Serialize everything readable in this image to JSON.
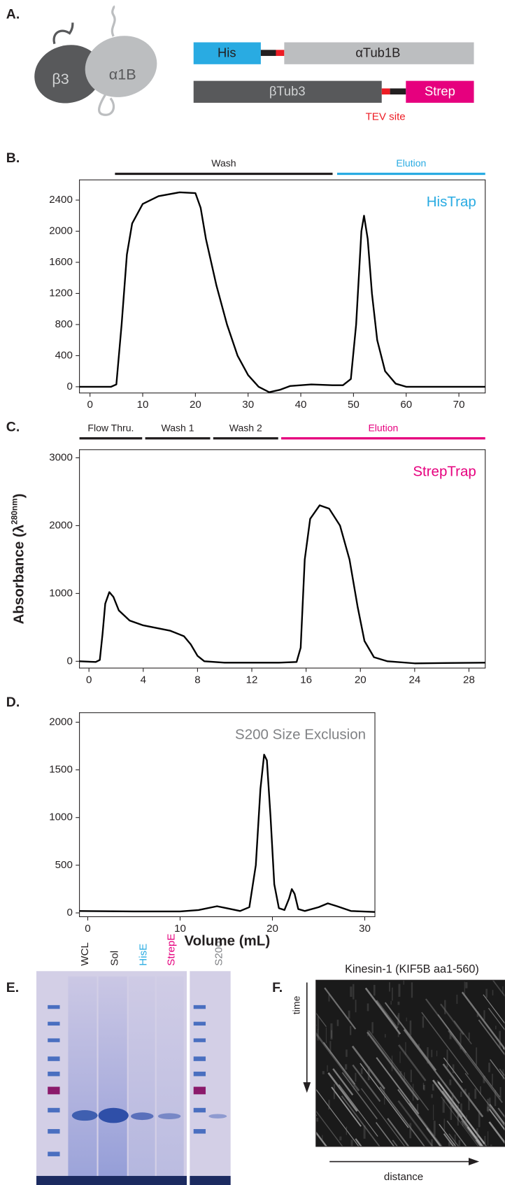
{
  "panel_labels": [
    "A.",
    "B.",
    "C.",
    "D.",
    "E.",
    "F."
  ],
  "diagram": {
    "subunits": [
      "β3",
      "α1B"
    ],
    "constructs": [
      [
        "His",
        "αTub1B"
      ],
      [
        "βTub3",
        "Strep"
      ]
    ],
    "tev": "TEV site"
  },
  "gel": {
    "lanes": [
      "WCL",
      "Sol",
      "HisE",
      "StrepE",
      "S200"
    ]
  },
  "kymograph": {
    "title": "Kinesin-1 (KIF5B aa1-560)",
    "y_label": "time",
    "x_label": "distance"
  },
  "chart_data": [
    {
      "type": "line",
      "title": "HisTrap",
      "title_color": "#29abe2",
      "phases": [
        {
          "label": "Wash",
          "color": "#231f20"
        },
        {
          "label": "Elution",
          "color": "#29abe2"
        }
      ],
      "color": "#000000",
      "x": [
        -2,
        4,
        5,
        6,
        7,
        8,
        10,
        13,
        17,
        20,
        21,
        22,
        24,
        26,
        28,
        30,
        32,
        34,
        36,
        38,
        42,
        46,
        48,
        49.5,
        50.5,
        51.5,
        52,
        52.7,
        53.5,
        54.5,
        56,
        58,
        60,
        75
      ],
      "values": [
        0,
        0,
        30,
        800,
        1700,
        2100,
        2350,
        2450,
        2500,
        2490,
        2300,
        1900,
        1300,
        800,
        400,
        150,
        0,
        -70,
        -40,
        10,
        30,
        20,
        20,
        100,
        800,
        2000,
        2200,
        1900,
        1200,
        600,
        200,
        40,
        0,
        0
      ],
      "xlim": [
        -2,
        75
      ],
      "ylim": [
        -80,
        2660
      ],
      "xticks": [
        0,
        10,
        20,
        30,
        40,
        50,
        60,
        70
      ],
      "yticks": [
        0,
        400,
        800,
        1200,
        1600,
        2000,
        2400
      ]
    },
    {
      "type": "line",
      "title": "StrepTrap",
      "title_color": "#e6007e",
      "ylabel": [
        "Absorbance (λ",
        "280nm",
        ")"
      ],
      "phases": [
        {
          "label": "Flow Thru.",
          "color": "#231f20"
        },
        {
          "label": "Wash 1",
          "color": "#231f20"
        },
        {
          "label": "Wash 2",
          "color": "#231f20"
        },
        {
          "label": "Elution",
          "color": "#e6007e"
        }
      ],
      "color": "#000000",
      "x": [
        -0.7,
        0.5,
        0.8,
        1.0,
        1.2,
        1.5,
        1.8,
        2.2,
        3,
        4,
        5,
        6,
        7,
        7.5,
        8,
        8.5,
        10,
        14,
        15.3,
        15.6,
        15.9,
        16.3,
        17,
        17.7,
        18.5,
        19.2,
        19.8,
        20.3,
        21,
        22,
        24,
        29.2
      ],
      "values": [
        0,
        -10,
        20,
        400,
        850,
        1020,
        950,
        750,
        600,
        530,
        490,
        450,
        370,
        250,
        80,
        0,
        -20,
        -20,
        -10,
        200,
        1500,
        2100,
        2300,
        2250,
        2000,
        1500,
        800,
        300,
        60,
        0,
        -30,
        -20
      ],
      "xlim": [
        -0.7,
        29.2
      ],
      "ylim": [
        -100,
        3120
      ],
      "xticks": [
        0,
        4,
        8,
        12,
        16,
        20,
        24,
        28
      ],
      "yticks": [
        0,
        1000,
        2000,
        3000
      ]
    },
    {
      "type": "line",
      "title": "S200 Size Exclusion",
      "title_color": "#808285",
      "xlabel": "Volume (mL)",
      "color": "#000000",
      "x": [
        -0.9,
        5,
        10,
        12,
        14,
        15,
        16.5,
        17.5,
        18.2,
        18.7,
        19.1,
        19.4,
        19.8,
        20.2,
        20.7,
        21.3,
        21.8,
        22.1,
        22.4,
        22.8,
        23.5,
        25,
        26,
        27,
        28.5,
        31.1
      ],
      "values": [
        20,
        15,
        15,
        30,
        70,
        50,
        20,
        60,
        500,
        1300,
        1660,
        1600,
        1000,
        300,
        50,
        30,
        150,
        250,
        200,
        40,
        20,
        60,
        100,
        70,
        20,
        10
      ],
      "xlim": [
        -0.9,
        31.1
      ],
      "ylim": [
        -40,
        2100
      ],
      "xticks": [
        0,
        10,
        20,
        30
      ],
      "yticks": [
        0,
        500,
        1000,
        1500,
        2000
      ]
    }
  ]
}
